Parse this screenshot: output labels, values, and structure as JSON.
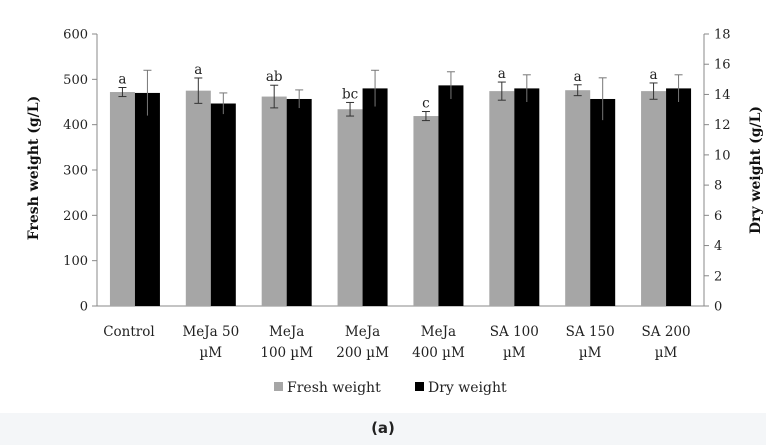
{
  "chart_data": {
    "type": "bar",
    "title": "",
    "caption": "(a)",
    "categories": [
      [
        "Control"
      ],
      [
        "MeJa 50",
        "µM"
      ],
      [
        "MeJa",
        "100 µM"
      ],
      [
        "MeJa",
        "200 µM"
      ],
      [
        "MeJa",
        "400 µM"
      ],
      [
        "SA 100",
        "µM"
      ],
      [
        "SA 150",
        "µM"
      ],
      [
        "SA 200",
        "µM"
      ]
    ],
    "ylabel": "Fresh weight (g/L)",
    "y2label": "Dry weight (g/L)",
    "ylim": [
      0,
      600
    ],
    "y2lim": [
      0,
      18
    ],
    "yticks": [
      "0",
      "100",
      "200",
      "300",
      "400",
      "500",
      "600"
    ],
    "y2ticks": [
      "0",
      "2",
      "4",
      "6",
      "8",
      "10",
      "12",
      "14",
      "16",
      "18"
    ],
    "series": [
      {
        "name": "Fresh weight",
        "axis": "left",
        "color": "#a6a6a6",
        "values": [
          472,
          475,
          462,
          434,
          419,
          474,
          476,
          474
        ],
        "errors": [
          10,
          28,
          25,
          15,
          10,
          20,
          12,
          18
        ]
      },
      {
        "name": "Dry weight",
        "axis": "right",
        "color": "#000000",
        "values": [
          14.1,
          13.4,
          13.7,
          14.4,
          14.6,
          14.4,
          13.7,
          14.4
        ],
        "errors": [
          1.5,
          0.7,
          0.6,
          1.2,
          0.9,
          0.9,
          1.4,
          0.9
        ]
      }
    ],
    "significance": [
      "a",
      "a",
      "ab",
      "bc",
      "c",
      "a",
      "a",
      "a"
    ],
    "legend_position": "bottom",
    "grid": false
  }
}
